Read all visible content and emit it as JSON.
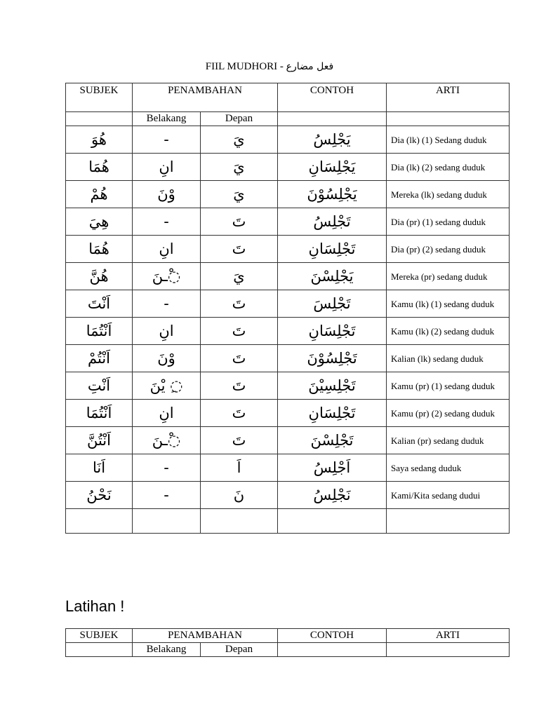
{
  "title": {
    "latin": "FIIL MUDHORI - ",
    "arabic": "فعل مضارع"
  },
  "table_headers": {
    "subjek": "SUBJEK",
    "penambahan": "PENAMBAHAN",
    "contoh": "CONTOH",
    "arti": "ARTI",
    "belakang": "Belakang",
    "depan": "Depan"
  },
  "rows": [
    {
      "subjek": "هُوَ",
      "belakang": "-",
      "depan": "يَ",
      "contoh": "يَجْلِسُ",
      "arti": "Dia (lk) (1) Sedang duduk"
    },
    {
      "subjek": "هُمَا",
      "belakang": "انِ",
      "depan": "يَ",
      "contoh": "يَجْلِسَانِ",
      "arti": "Dia (lk) (2) sedang duduk"
    },
    {
      "subjek": "هُمْ",
      "belakang": "وْنَ",
      "depan": "يَ",
      "contoh": "يَجْلِسُوْنَ",
      "arti": "Mereka (lk) sedang duduk"
    },
    {
      "subjek": "هِيَ",
      "belakang": "-",
      "depan": "تَ",
      "contoh": "تَجْلِسُ",
      "arti": "Dia (pr) (1) sedang duduk"
    },
    {
      "subjek": "هُمَا",
      "belakang": "انِ",
      "depan": "تَ",
      "contoh": "تَجْلِسَانِ",
      "arti": "Dia (pr) (2) sedang duduk"
    },
    {
      "subjek": "هُنَّ",
      "belakang": "◌ْـنَ",
      "depan": "يَ",
      "contoh": "يَجْلِسْنَ",
      "arti": "Mereka (pr) sedang duduk"
    },
    {
      "subjek": "اَنْتَ",
      "belakang": "-",
      "depan": "تَ",
      "contoh": "تَجْلِسَ",
      "arti": "Kamu (lk) (1) sedang duduk"
    },
    {
      "subjek": "اَنْتُمَا",
      "belakang": "انِ",
      "depan": "تَ",
      "contoh": "تَجْلِسَانِ",
      "arti": "Kamu (lk) (2) sedang duduk"
    },
    {
      "subjek": "اَنْتُمْ",
      "belakang": "وْنَ",
      "depan": "تَ",
      "contoh": "تَجْلِسُوْنَ",
      "arti": "Kalian (lk) sedang duduk"
    },
    {
      "subjek": "اَنْتِ",
      "belakang": "◌ِ يْنَ",
      "depan": "تَ",
      "contoh": "تَجْلِسِيْنَ",
      "arti": "Kamu (pr) (1) sedang duduk"
    },
    {
      "subjek": "اَنْتُمَا",
      "belakang": "انِ",
      "depan": "تَ",
      "contoh": "تَجْلِسَانِ",
      "arti": "Kamu (pr) (2) sedang duduk"
    },
    {
      "subjek": "اَنْتُنَّ",
      "belakang": "◌ْـنَ",
      "depan": "تَ",
      "contoh": "تَجْلِسْنَ",
      "arti": "Kalian (pr) sedang duduk"
    },
    {
      "subjek": "اَنَا",
      "belakang": "-",
      "depan": "اَ",
      "contoh": "اَجْلِسُ",
      "arti": "Saya sedang duduk"
    },
    {
      "subjek": "نَحْنُ",
      "belakang": "-",
      "depan": "نَ",
      "contoh": "نَجْلِسُ",
      "arti": "Kami/Kita sedang dudui"
    }
  ],
  "latihan": {
    "heading": "Latihan !"
  }
}
